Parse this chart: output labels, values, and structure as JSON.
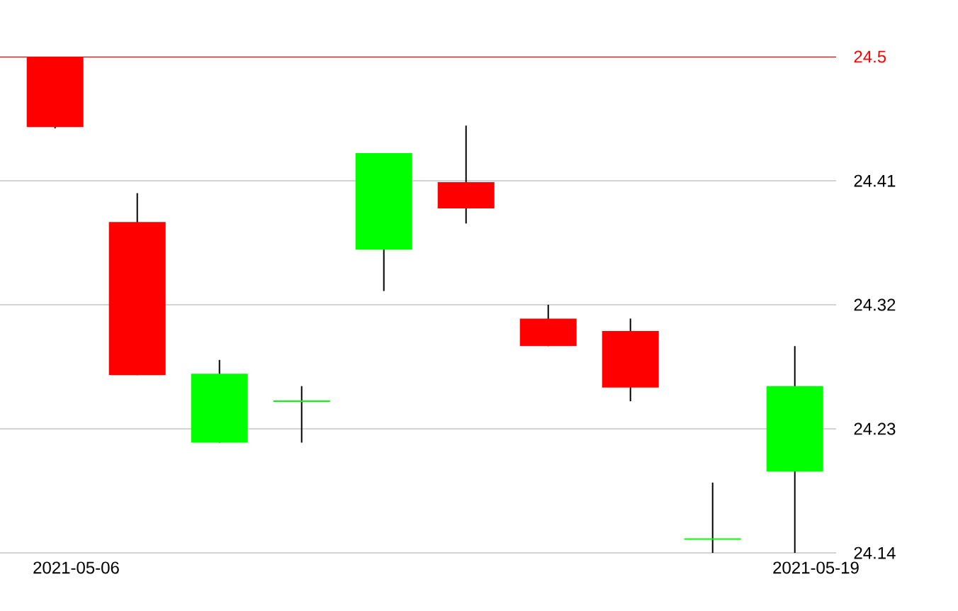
{
  "chart_data": {
    "type": "candlestick",
    "categories": [
      "2021-05-06",
      null,
      null,
      null,
      null,
      null,
      null,
      null,
      null,
      "2021-05-19"
    ],
    "ohlc": [
      [
        24.5,
        24.5,
        24.448,
        24.449
      ],
      [
        24.38,
        24.401,
        24.269,
        24.269
      ],
      [
        24.22,
        24.28,
        24.22,
        24.27
      ],
      [
        24.25,
        24.261,
        24.22,
        24.25
      ],
      [
        24.36,
        24.43,
        24.33,
        24.43
      ],
      [
        24.409,
        24.45,
        24.379,
        24.39
      ],
      [
        24.31,
        24.32,
        24.29,
        24.29
      ],
      [
        24.301,
        24.31,
        24.25,
        24.26
      ],
      [
        24.15,
        24.191,
        24.14,
        24.15
      ],
      [
        24.199,
        24.29,
        24.14,
        24.261
      ]
    ],
    "colors": [
      "#ff0000",
      "#ff0000",
      "#00ff00",
      "#00ff00",
      "#00ff00",
      "#ff0000",
      "#ff0000",
      "#ff0000",
      "#00ff00",
      "#00ff00"
    ],
    "ylim": [
      24.14,
      24.5
    ],
    "yticks": [
      24.14,
      24.23,
      24.32,
      24.41,
      24.5
    ],
    "grid": "y",
    "ref_lines": [
      {
        "axis": "y",
        "value": 24.5,
        "color": "#ff0000"
      }
    ]
  }
}
